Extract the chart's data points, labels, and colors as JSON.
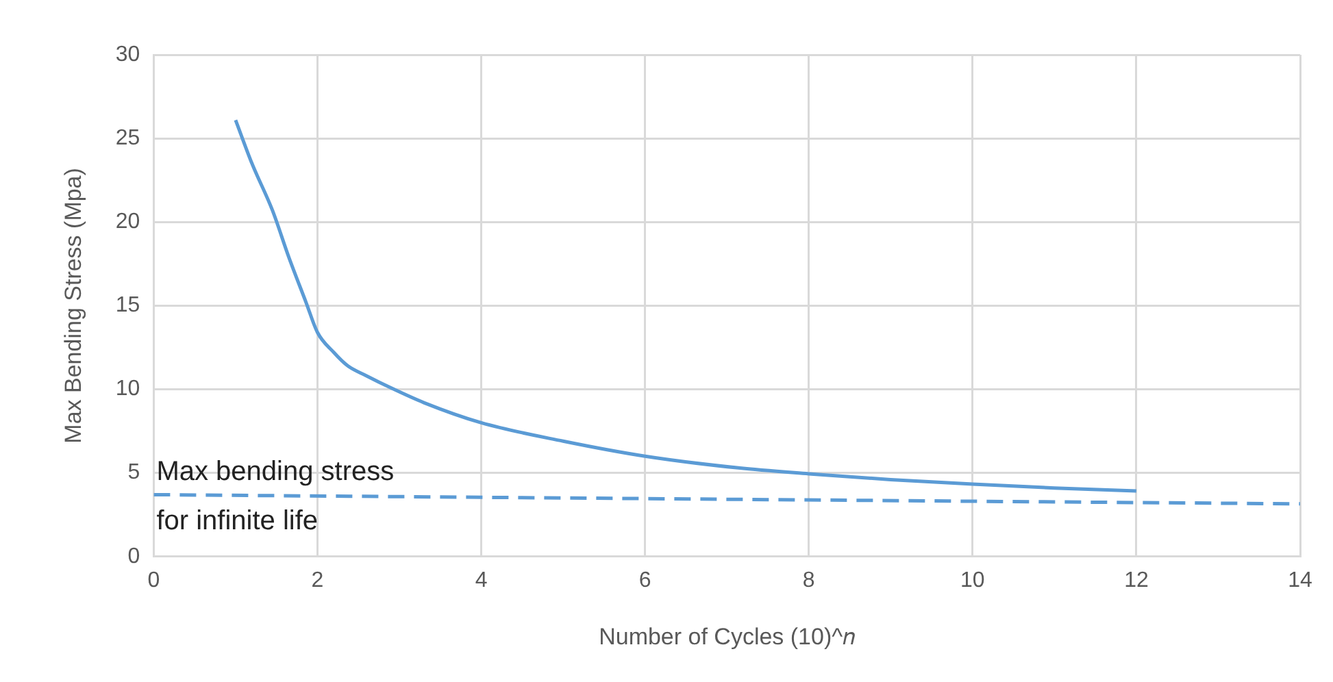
{
  "chart_data": {
    "type": "line",
    "xlabel": "Number of Cycles (10)^𝑛",
    "ylabel": "Max Bending Stress (Mpa)",
    "xlim": [
      0,
      14
    ],
    "xticks": [
      0,
      2,
      4,
      6,
      8,
      10,
      12,
      14
    ],
    "ylim": [
      0,
      30
    ],
    "yticks": [
      0,
      5,
      10,
      15,
      20,
      25,
      30
    ],
    "grid": true,
    "legend": false,
    "marker": "none",
    "series": [
      {
        "color": "#5b9bd5",
        "line_style": "solid",
        "x": [
          1,
          1.2,
          1.45,
          1.65,
          1.86,
          2,
          2.2,
          2.37,
          2.6,
          2.89,
          3.3,
          4,
          5,
          6,
          7.14,
          8,
          9,
          10,
          11,
          12
        ],
        "values": [
          26.1,
          23.5,
          20.7,
          17.9,
          15.2,
          13.4,
          12.2,
          11.4,
          10.8,
          10.1,
          9.2,
          8.0,
          6.9,
          6.0,
          5.3,
          4.95,
          4.6,
          4.33,
          4.1,
          3.92
        ]
      },
      {
        "color": "#5b9bd5",
        "line_style": "dashed",
        "x": [
          0,
          14
        ],
        "values": [
          3.7,
          3.15
        ]
      }
    ],
    "annotations": [
      {
        "text": "Max bending stress\nfor infinite life",
        "x": 0,
        "y": 3.7
      }
    ]
  }
}
